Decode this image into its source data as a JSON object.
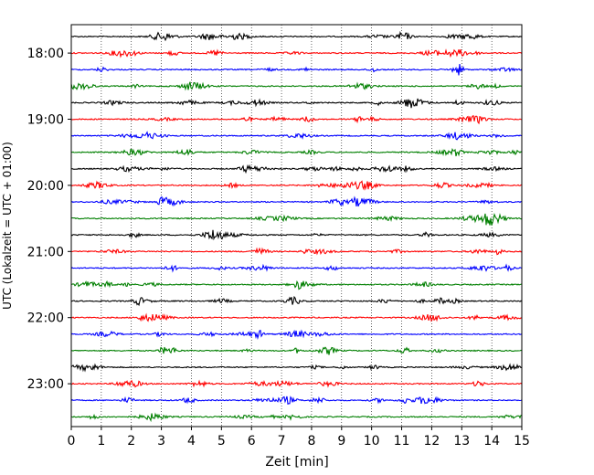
{
  "chart_data": {
    "type": "line",
    "title": "",
    "xlabel": "Zeit  [min]",
    "ylabel": "UTC (Lokalzeit = UTC + 01:00)",
    "xlim": [
      0,
      15
    ],
    "x_ticks": [
      "0",
      "1",
      "2",
      "3",
      "4",
      "5",
      "6",
      "7",
      "8",
      "9",
      "10",
      "11",
      "12",
      "13",
      "14",
      "15"
    ],
    "x_grid": true,
    "y_ticks": [
      "18:00",
      "19:00",
      "20:00",
      "21:00",
      "22:00",
      "23:00"
    ],
    "rows_per_hour": 4,
    "row_minutes": 15,
    "colors": [
      "#000000",
      "#ff0000",
      "#0000ff",
      "#007f00"
    ],
    "traces": [
      {
        "start": "17:45"
      },
      {
        "start": "18:00"
      },
      {
        "start": "18:15"
      },
      {
        "start": "18:30"
      },
      {
        "start": "18:45"
      },
      {
        "start": "19:00"
      },
      {
        "start": "19:15"
      },
      {
        "start": "19:30"
      },
      {
        "start": "19:45"
      },
      {
        "start": "20:00"
      },
      {
        "start": "20:15"
      },
      {
        "start": "20:30"
      },
      {
        "start": "20:45"
      },
      {
        "start": "21:00"
      },
      {
        "start": "21:15"
      },
      {
        "start": "21:30"
      },
      {
        "start": "21:45"
      },
      {
        "start": "22:00"
      },
      {
        "start": "22:15"
      },
      {
        "start": "22:30"
      },
      {
        "start": "22:45"
      },
      {
        "start": "23:00"
      },
      {
        "start": "23:15"
      },
      {
        "start": "23:30"
      }
    ]
  }
}
